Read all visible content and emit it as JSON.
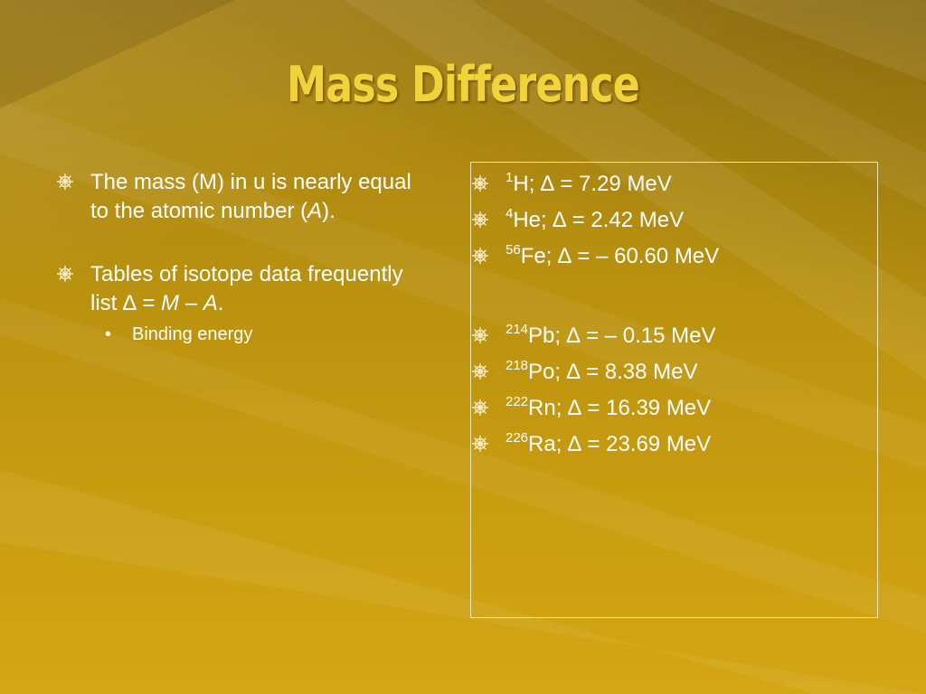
{
  "slide": {
    "title": "Mass Difference",
    "left_points": [
      {
        "parts": [
          "The mass (M) in u is nearly equal to the atomic number (",
          "A",
          ")."
        ]
      },
      {
        "parts": [
          "Tables of isotope data frequently list ∆ = ",
          "M",
          " – ",
          "A",
          "."
        ]
      }
    ],
    "sub_point": {
      "marker": "•",
      "text": "Binding energy"
    },
    "isotopes": [
      {
        "mass": "1",
        "symbol": "H",
        "rest": "; ∆ = 7.29 MeV"
      },
      {
        "mass": "4",
        "symbol": "He",
        "rest": "; ∆ = 2.42 MeV"
      },
      {
        "mass": "56",
        "symbol": "Fe",
        "rest": "; ∆ = – 60.60 MeV"
      },
      {
        "mass": "214",
        "symbol": "Pb",
        "rest": "; ∆ = – 0.15 MeV"
      },
      {
        "mass": "218",
        "symbol": "Po",
        "rest": "; ∆ = 8.38 MeV"
      },
      {
        "mass": "222",
        "symbol": "Rn",
        "rest": "; ∆ = 16.39 MeV"
      },
      {
        "mass": "226",
        "symbol": "Ra",
        "rest": "; ∆ = 23.69 MeV"
      }
    ],
    "colors": {
      "title": "#f2d43a",
      "body_text": "#ffffff",
      "background": "#b8910f",
      "box_border": "#f1e6b8"
    },
    "icon": "ships-wheel-icon"
  }
}
